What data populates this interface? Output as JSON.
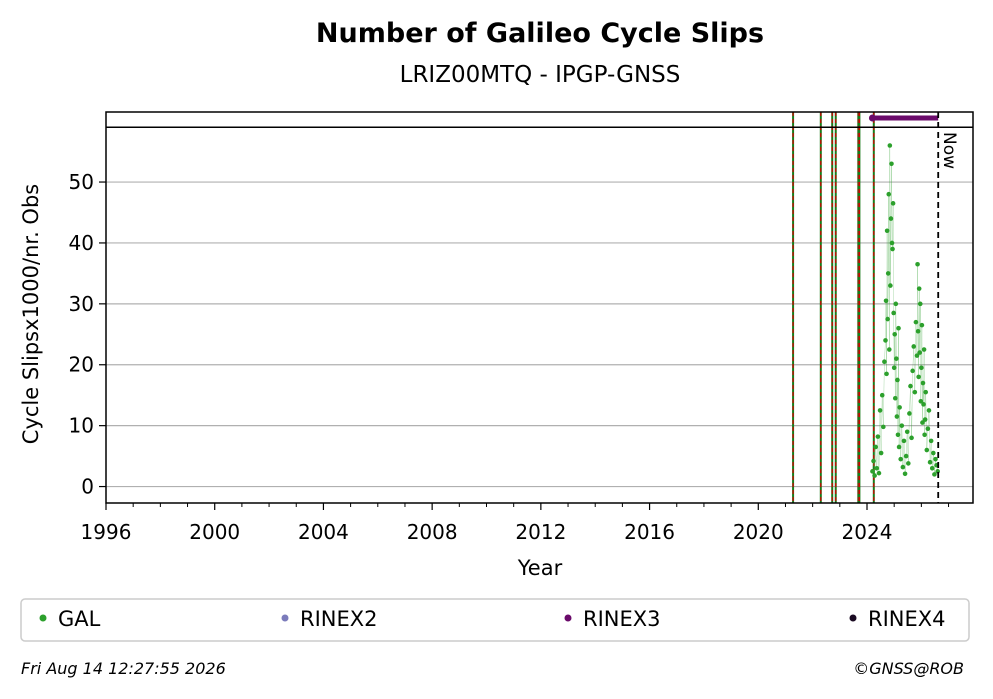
{
  "chart_data": {
    "type": "scatter",
    "title": "Number of Galileo Cycle Slips",
    "subtitle": "LRIZ00MTQ - IPGP-GNSS",
    "xlabel": "Year",
    "ylabel": "Cycle Slipsx1000/nr. Obs",
    "xlim": [
      1996,
      2027.9
    ],
    "ylim": [
      -2.7,
      61.5
    ],
    "xticks": [
      1996,
      2000,
      2004,
      2008,
      2012,
      2016,
      2020,
      2024
    ],
    "yticks": [
      0,
      10,
      20,
      30,
      40,
      50
    ],
    "grid": "horizontal",
    "threshold_y": 59,
    "now_x": 2026.62,
    "now_label": "Now",
    "rinex3_period": [
      2024.2,
      2026.62
    ],
    "event_lines_x": [
      2021.28,
      2022.3,
      2022.72,
      2022.85,
      2023.68,
      2023.72,
      2024.25
    ],
    "legend_position": "bottom",
    "legend": [
      {
        "label": "GAL",
        "color": "#2ca02c"
      },
      {
        "label": "RINEX2",
        "color": "#7b7bbb"
      },
      {
        "label": "RINEX3",
        "color": "#6a0a6a"
      },
      {
        "label": "RINEX4",
        "color": "#1a0a22"
      }
    ],
    "series": [
      {
        "name": "GAL",
        "color": "#2ca02c",
        "x": [
          2024.2,
          2024.24,
          2024.28,
          2024.32,
          2024.36,
          2024.4,
          2024.44,
          2024.48,
          2024.52,
          2024.56,
          2024.6,
          2024.64,
          2024.68,
          2024.7,
          2024.72,
          2024.74,
          2024.76,
          2024.78,
          2024.8,
          2024.82,
          2024.84,
          2024.86,
          2024.88,
          2024.9,
          2024.92,
          2024.94,
          2024.96,
          2024.98,
          2025.0,
          2025.02,
          2025.04,
          2025.06,
          2025.08,
          2025.1,
          2025.12,
          2025.14,
          2025.16,
          2025.18,
          2025.2,
          2025.24,
          2025.28,
          2025.32,
          2025.36,
          2025.4,
          2025.44,
          2025.48,
          2025.52,
          2025.56,
          2025.6,
          2025.64,
          2025.68,
          2025.72,
          2025.76,
          2025.8,
          2025.84,
          2025.86,
          2025.88,
          2025.9,
          2025.92,
          2025.94,
          2025.96,
          2025.98,
          2026.0,
          2026.02,
          2026.04,
          2026.06,
          2026.08,
          2026.1,
          2026.12,
          2026.14,
          2026.16,
          2026.2,
          2026.24,
          2026.28,
          2026.32,
          2026.36,
          2026.4,
          2026.44,
          2026.48,
          2026.52,
          2026.56,
          2026.6
        ],
        "y": [
          2.5,
          4.2,
          1.8,
          6.5,
          3.0,
          8.2,
          2.2,
          12.5,
          5.5,
          15.0,
          9.8,
          20.5,
          24.0,
          30.5,
          18.5,
          42.0,
          27.5,
          35.0,
          48.0,
          22.5,
          56.0,
          33.0,
          44.0,
          53.0,
          40.0,
          39.0,
          46.5,
          28.5,
          19.5,
          25.0,
          14.5,
          30.0,
          21.0,
          11.5,
          17.5,
          8.5,
          26.0,
          6.5,
          13.0,
          4.5,
          10.0,
          3.2,
          7.5,
          2.1,
          5.0,
          9.0,
          3.8,
          12.0,
          16.5,
          8.0,
          19.0,
          23.0,
          15.5,
          27.0,
          21.5,
          36.5,
          25.5,
          18.0,
          32.5,
          22.0,
          30.0,
          14.0,
          19.5,
          26.5,
          10.5,
          17.0,
          13.5,
          22.5,
          8.5,
          11.0,
          15.5,
          6.0,
          9.5,
          12.5,
          4.0,
          7.5,
          3.0,
          5.5,
          2.0,
          4.5,
          3.5,
          2.5
        ]
      }
    ]
  },
  "footer": {
    "timestamp": "Fri Aug 14 12:27:55 2026",
    "credit": "©GNSS@ROB"
  }
}
